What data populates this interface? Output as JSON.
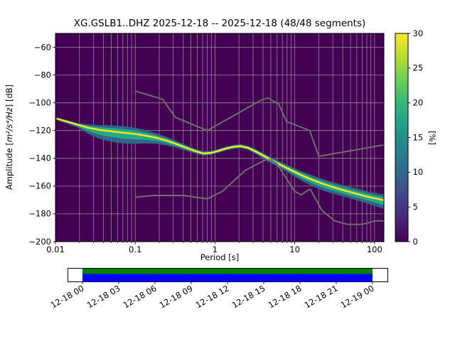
{
  "chart_data": {
    "type": "heatmap",
    "subtype": "probabilistic-power-spectral-density",
    "title": "XG.GSLB1..DHZ   2025-12-18 -- 2025-12-18  (48/48 segments)",
    "xlabel": "Period [s]",
    "ylabel": "Amplitude [m²/s⁴/Hz] [dB]",
    "xscale": "log",
    "xlim": [
      0.01,
      131
    ],
    "ylim": [
      -200,
      -50
    ],
    "colorbar_label": "[%]",
    "colorbar_range": [
      0,
      30
    ],
    "psd_distribution": {
      "format": [
        "period_s",
        "mode_db",
        "band_upper_db",
        "band_lower_db"
      ],
      "points": [
        [
          0.0105,
          -111.5,
          -110.6,
          -112.6
        ],
        [
          0.014,
          -113.5,
          -112.5,
          -115.0
        ],
        [
          0.019,
          -115.8,
          -114.5,
          -117.8
        ],
        [
          0.026,
          -118.0,
          -115.6,
          -122.5
        ],
        [
          0.036,
          -119.5,
          -116.0,
          -126.0
        ],
        [
          0.05,
          -120.5,
          -116.2,
          -128.0
        ],
        [
          0.07,
          -121.5,
          -116.8,
          -129.3
        ],
        [
          0.095,
          -122.3,
          -117.8,
          -129.6
        ],
        [
          0.13,
          -123.5,
          -119.5,
          -129.2
        ],
        [
          0.18,
          -125.0,
          -121.8,
          -129.4
        ],
        [
          0.25,
          -127.3,
          -124.6,
          -130.8
        ],
        [
          0.34,
          -130.0,
          -127.8,
          -132.6
        ],
        [
          0.45,
          -132.7,
          -130.8,
          -134.8
        ],
        [
          0.58,
          -135.0,
          -133.3,
          -136.7
        ],
        [
          0.72,
          -136.5,
          -134.9,
          -138.0
        ],
        [
          0.9,
          -136.0,
          -134.6,
          -137.4
        ],
        [
          1.1,
          -134.6,
          -133.2,
          -136.0
        ],
        [
          1.4,
          -132.8,
          -131.4,
          -134.2
        ],
        [
          1.75,
          -131.6,
          -130.2,
          -133.0
        ],
        [
          2.1,
          -131.2,
          -129.8,
          -132.7
        ],
        [
          2.6,
          -132.4,
          -131.0,
          -134.0
        ],
        [
          3.3,
          -135.2,
          -133.6,
          -137.2
        ],
        [
          4.2,
          -138.6,
          -136.8,
          -140.8
        ],
        [
          5.3,
          -141.8,
          -139.8,
          -144.2
        ],
        [
          6.7,
          -144.8,
          -142.6,
          -147.4
        ],
        [
          8.5,
          -147.8,
          -145.4,
          -150.8
        ],
        [
          10.5,
          -150.4,
          -147.8,
          -154.0
        ],
        [
          13,
          -152.9,
          -150.0,
          -157.0
        ],
        [
          16.5,
          -155.4,
          -152.2,
          -160.0
        ],
        [
          21,
          -157.7,
          -154.4,
          -162.6
        ],
        [
          27,
          -159.8,
          -156.4,
          -164.6
        ],
        [
          34,
          -161.6,
          -158.0,
          -166.2
        ],
        [
          43,
          -163.3,
          -159.6,
          -167.8
        ],
        [
          55,
          -165.0,
          -161.2,
          -169.6
        ],
        [
          70,
          -166.6,
          -162.8,
          -171.4
        ],
        [
          88,
          -168.0,
          -164.2,
          -173.2
        ],
        [
          110,
          -169.2,
          -165.4,
          -175.0
        ],
        [
          131,
          -170.2,
          -166.0,
          -176.5
        ]
      ]
    },
    "noise_models": {
      "high": [
        [
          0.1,
          -91.5
        ],
        [
          0.22,
          -97.4
        ],
        [
          0.32,
          -110.5
        ],
        [
          0.8,
          -120.0
        ],
        [
          3.8,
          -98.0
        ],
        [
          4.6,
          -96.5
        ],
        [
          6.3,
          -101.0
        ],
        [
          7.9,
          -113.5
        ],
        [
          15.4,
          -120.0
        ],
        [
          20.0,
          -138.5
        ],
        [
          131.0,
          -130.3
        ]
      ],
      "low": [
        [
          0.1,
          -168.0
        ],
        [
          0.17,
          -166.7
        ],
        [
          0.4,
          -166.7
        ],
        [
          0.8,
          -169.2
        ],
        [
          1.24,
          -163.7
        ],
        [
          2.4,
          -148.6
        ],
        [
          4.3,
          -141.1
        ],
        [
          5.0,
          -141.1
        ],
        [
          6.0,
          -144.0
        ],
        [
          10.0,
          -163.8
        ],
        [
          12.0,
          -166.2
        ],
        [
          15.6,
          -162.1
        ],
        [
          21.9,
          -177.5
        ],
        [
          31.6,
          -185.0
        ],
        [
          45.0,
          -187.5
        ],
        [
          70.0,
          -187.5
        ],
        [
          101.0,
          -185.0
        ],
        [
          131.0,
          -185.0
        ]
      ]
    }
  },
  "axes": {
    "ylabel_prefix": "Amplitude [",
    "ylabel_math": "m²/s⁴/Hz",
    "ylabel_suffix": "] [dB]",
    "x_ticks": [
      {
        "value": 0.01,
        "label": "0.01"
      },
      {
        "value": 0.1,
        "label": "0.1"
      },
      {
        "value": 1,
        "label": "1"
      },
      {
        "value": 10,
        "label": "10"
      },
      {
        "value": 100,
        "label": "100"
      }
    ],
    "y_ticks": [
      {
        "value": -200,
        "label": "−200"
      },
      {
        "value": -180,
        "label": "−180"
      },
      {
        "value": -160,
        "label": "−160"
      },
      {
        "value": -140,
        "label": "−140"
      },
      {
        "value": -120,
        "label": "−120"
      },
      {
        "value": -100,
        "label": "−100"
      },
      {
        "value": -80,
        "label": "−80"
      },
      {
        "value": -60,
        "label": "−60"
      }
    ]
  },
  "colorbar": {
    "label": "[%]",
    "min": 0,
    "max": 30,
    "ticks": [
      0,
      5,
      10,
      15,
      20,
      25,
      30
    ],
    "viridis": [
      "#440154",
      "#482878",
      "#3e4989",
      "#31688e",
      "#26828e",
      "#1f9e89",
      "#35b779",
      "#6ece58",
      "#b5de2b",
      "#fde725"
    ]
  },
  "timeline": {
    "tick_labels": [
      "12-18 00",
      "12-18 03",
      "12-18 06",
      "12-18 09",
      "12-18 12",
      "12-18 15",
      "12-18 18",
      "12-18 21",
      "12-19 00"
    ]
  },
  "colors": {
    "background": "#440154",
    "grid": "#b0b0b0",
    "noise_model": "#6e6e6e",
    "band_outer": "#2d6e8e",
    "band_mid": "#27ad81",
    "core": "#f8e621",
    "coverage_green": "#008000",
    "coverage_blue": "#0000ff"
  }
}
